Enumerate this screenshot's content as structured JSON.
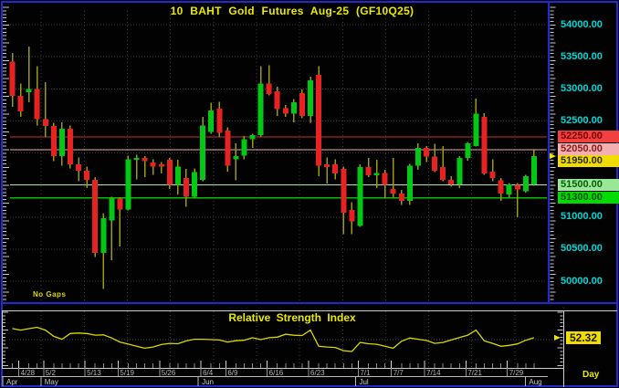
{
  "window_title": "10 BAHT Gold Futures Aug-25 (GF10Q25)",
  "colors": {
    "frame_blue": "#2328cf",
    "panel_border": "#d0d0d0",
    "up": "#00c814",
    "down": "#e62222",
    "wick": "#9a9a10",
    "axis_text_cyan": "#00d8d8",
    "accent_yellow": "#e9e900",
    "grid": "#3c3c3c"
  },
  "chart_data": [
    {
      "type": "candlestick",
      "title": "10 BAHT Gold Futures Aug-25 (GF10Q25)",
      "timeframe_label": "Day",
      "no_gaps_label": "No Gaps",
      "ylim": [
        49700,
        54250
      ],
      "grid_step": 500,
      "y_axis_labels": [
        {
          "text": "54000.00",
          "price": 54000
        },
        {
          "text": "53500.00",
          "price": 53500
        },
        {
          "text": "53000.00",
          "price": 53000
        },
        {
          "text": "52500.00",
          "price": 52500
        },
        {
          "text": "51000.00",
          "price": 51000
        },
        {
          "text": "50500.00",
          "price": 50500
        },
        {
          "text": "50000.00",
          "price": 50000
        }
      ],
      "price_rows": [
        {
          "label": "52250.00",
          "price": 52250,
          "bg": "#f04040",
          "fg": "#7a0000",
          "line_color": "#c83232",
          "current": false
        },
        {
          "label": "52050.00",
          "price": 52050,
          "bg": "#f4b0b0",
          "fg": "#8b1a1a",
          "line_color": "#f0aaaa",
          "current": false
        },
        {
          "label": "51950.00",
          "price": 51950,
          "bg": "#f0dc00",
          "fg": "#2a2a00",
          "line_color": null,
          "current": true
        },
        {
          "label": "51500.00",
          "price": 51500,
          "bg": "#98e898",
          "fg": "#0a5c0a",
          "line_color": "#aae8aa",
          "current": false
        },
        {
          "label": "51300.00",
          "price": 51300,
          "bg": "#00dc00",
          "fg": "#0a4a0a",
          "line_color": "#00c000",
          "current": false
        }
      ],
      "x_ticks": [
        {
          "label": "4/28",
          "index": 1
        },
        {
          "label": "5/2",
          "index": 4
        },
        {
          "label": "5/13",
          "index": 9
        },
        {
          "label": "5/19",
          "index": 13
        },
        {
          "label": "5/26",
          "index": 18
        },
        {
          "label": "6/4",
          "index": 23
        },
        {
          "label": "6/9",
          "index": 26
        },
        {
          "label": "6/16",
          "index": 31
        },
        {
          "label": "6/23",
          "index": 36
        },
        {
          "label": "7/1",
          "index": 42
        },
        {
          "label": "7/7",
          "index": 46
        },
        {
          "label": "7/14",
          "index": 50
        },
        {
          "label": "7/21",
          "index": 55
        },
        {
          "label": "7/29",
          "index": 60
        }
      ],
      "months": [
        {
          "label": "Apr",
          "start_index": 0
        },
        {
          "label": "May",
          "start_index": 4
        },
        {
          "label": "Jun",
          "start_index": 23
        },
        {
          "label": "Jul",
          "start_index": 42
        },
        {
          "label": "Aug",
          "start_index": 62.5
        }
      ],
      "candles": [
        [
          53420,
          53560,
          52720,
          52890
        ],
        [
          52890,
          53080,
          52560,
          52650
        ],
        [
          52950,
          53660,
          52790,
          53000
        ],
        [
          53000,
          53350,
          52430,
          52530
        ],
        [
          52530,
          53100,
          52250,
          52420
        ],
        [
          52420,
          52470,
          51870,
          51950
        ],
        [
          51950,
          52480,
          51800,
          52380
        ],
        [
          52380,
          52430,
          51760,
          51820
        ],
        [
          51820,
          51930,
          51560,
          51720
        ],
        [
          51720,
          51790,
          51450,
          51580
        ],
        [
          51580,
          51620,
          50380,
          50440
        ],
        [
          50440,
          51060,
          49880,
          50980
        ],
        [
          50950,
          51320,
          50330,
          51290
        ],
        [
          51290,
          51310,
          50540,
          51120
        ],
        [
          51120,
          51960,
          51100,
          51900
        ],
        [
          51900,
          51970,
          51590,
          51920
        ],
        [
          51920,
          51950,
          51620,
          51870
        ],
        [
          51850,
          51900,
          51660,
          51790
        ],
        [
          51820,
          51860,
          51680,
          51790
        ],
        [
          51890,
          51920,
          51440,
          51500
        ],
        [
          51500,
          51890,
          51350,
          51790
        ],
        [
          51610,
          51750,
          51160,
          51320
        ],
        [
          51320,
          51760,
          51290,
          51700
        ],
        [
          51580,
          52560,
          51560,
          52430
        ],
        [
          52330,
          52780,
          52300,
          52660
        ],
        [
          52690,
          52800,
          52250,
          52310
        ],
        [
          52350,
          52400,
          51710,
          51800
        ],
        [
          51900,
          52150,
          51570,
          51950
        ],
        [
          51960,
          52260,
          51900,
          52210
        ],
        [
          52210,
          52300,
          52080,
          52280
        ],
        [
          52280,
          53350,
          52250,
          53080
        ],
        [
          53080,
          53370,
          52900,
          52920
        ],
        [
          52960,
          53030,
          52580,
          52680
        ],
        [
          52700,
          52750,
          52560,
          52610
        ],
        [
          52610,
          52840,
          52480,
          52790
        ],
        [
          52930,
          52990,
          52540,
          52580
        ],
        [
          52580,
          53190,
          52470,
          53130
        ],
        [
          53220,
          53350,
          51640,
          51800
        ],
        [
          51820,
          51930,
          51520,
          51780
        ],
        [
          51820,
          51900,
          51590,
          51680
        ],
        [
          51750,
          51790,
          50730,
          51070
        ],
        [
          51110,
          51230,
          50730,
          50930
        ],
        [
          50860,
          51820,
          50850,
          51780
        ],
        [
          51780,
          51920,
          51620,
          51650
        ],
        [
          51650,
          51890,
          51450,
          51690
        ],
        [
          51690,
          51740,
          51290,
          51500
        ],
        [
          51440,
          51920,
          51300,
          51370
        ],
        [
          51370,
          51420,
          51190,
          51250
        ],
        [
          51250,
          51830,
          51190,
          51800
        ],
        [
          51800,
          52150,
          51740,
          52080
        ],
        [
          52080,
          52110,
          51860,
          51940
        ],
        [
          51940,
          52140,
          51700,
          51720
        ],
        [
          51780,
          52110,
          51560,
          51580
        ],
        [
          51580,
          51640,
          51470,
          51510
        ],
        [
          51510,
          51950,
          51450,
          51920
        ],
        [
          51920,
          52170,
          51880,
          52150
        ],
        [
          52110,
          52850,
          52100,
          52610
        ],
        [
          52560,
          52620,
          51660,
          51680
        ],
        [
          51710,
          51900,
          51560,
          51610
        ],
        [
          51570,
          51610,
          51250,
          51370
        ],
        [
          51350,
          51530,
          51310,
          51510
        ],
        [
          51500,
          51530,
          51000,
          51430
        ],
        [
          51400,
          51660,
          51380,
          51640
        ],
        [
          51510,
          52040,
          51490,
          51950
        ]
      ]
    },
    {
      "type": "line",
      "title": "Relative Strength Index",
      "last_value": 52.32,
      "last_value_label": "52.32",
      "ylim": [
        15,
        85
      ],
      "gridline_value": 50,
      "values": [
        63.5,
        61.5,
        63.3,
        65,
        61.5,
        54,
        50.5,
        57.5,
        58,
        57.5,
        55.5,
        55.8,
        52,
        47,
        44.5,
        42,
        39.5,
        41,
        44,
        45.5,
        45,
        48.5,
        50.5,
        50.5,
        50,
        49.5,
        47,
        48.7,
        49.2,
        52.3,
        50,
        52.3,
        53,
        56.5,
        55.3,
        55,
        61.5,
        41.9,
        41,
        40.5,
        36.5,
        35.6,
        46.5,
        45,
        44.3,
        42,
        39.5,
        48,
        52,
        50.5,
        49,
        45.5,
        46.5,
        49.5,
        52.5,
        55.5,
        61.5,
        48.5,
        45.5,
        41.9,
        43,
        44.8,
        49.2,
        52.32
      ]
    }
  ]
}
